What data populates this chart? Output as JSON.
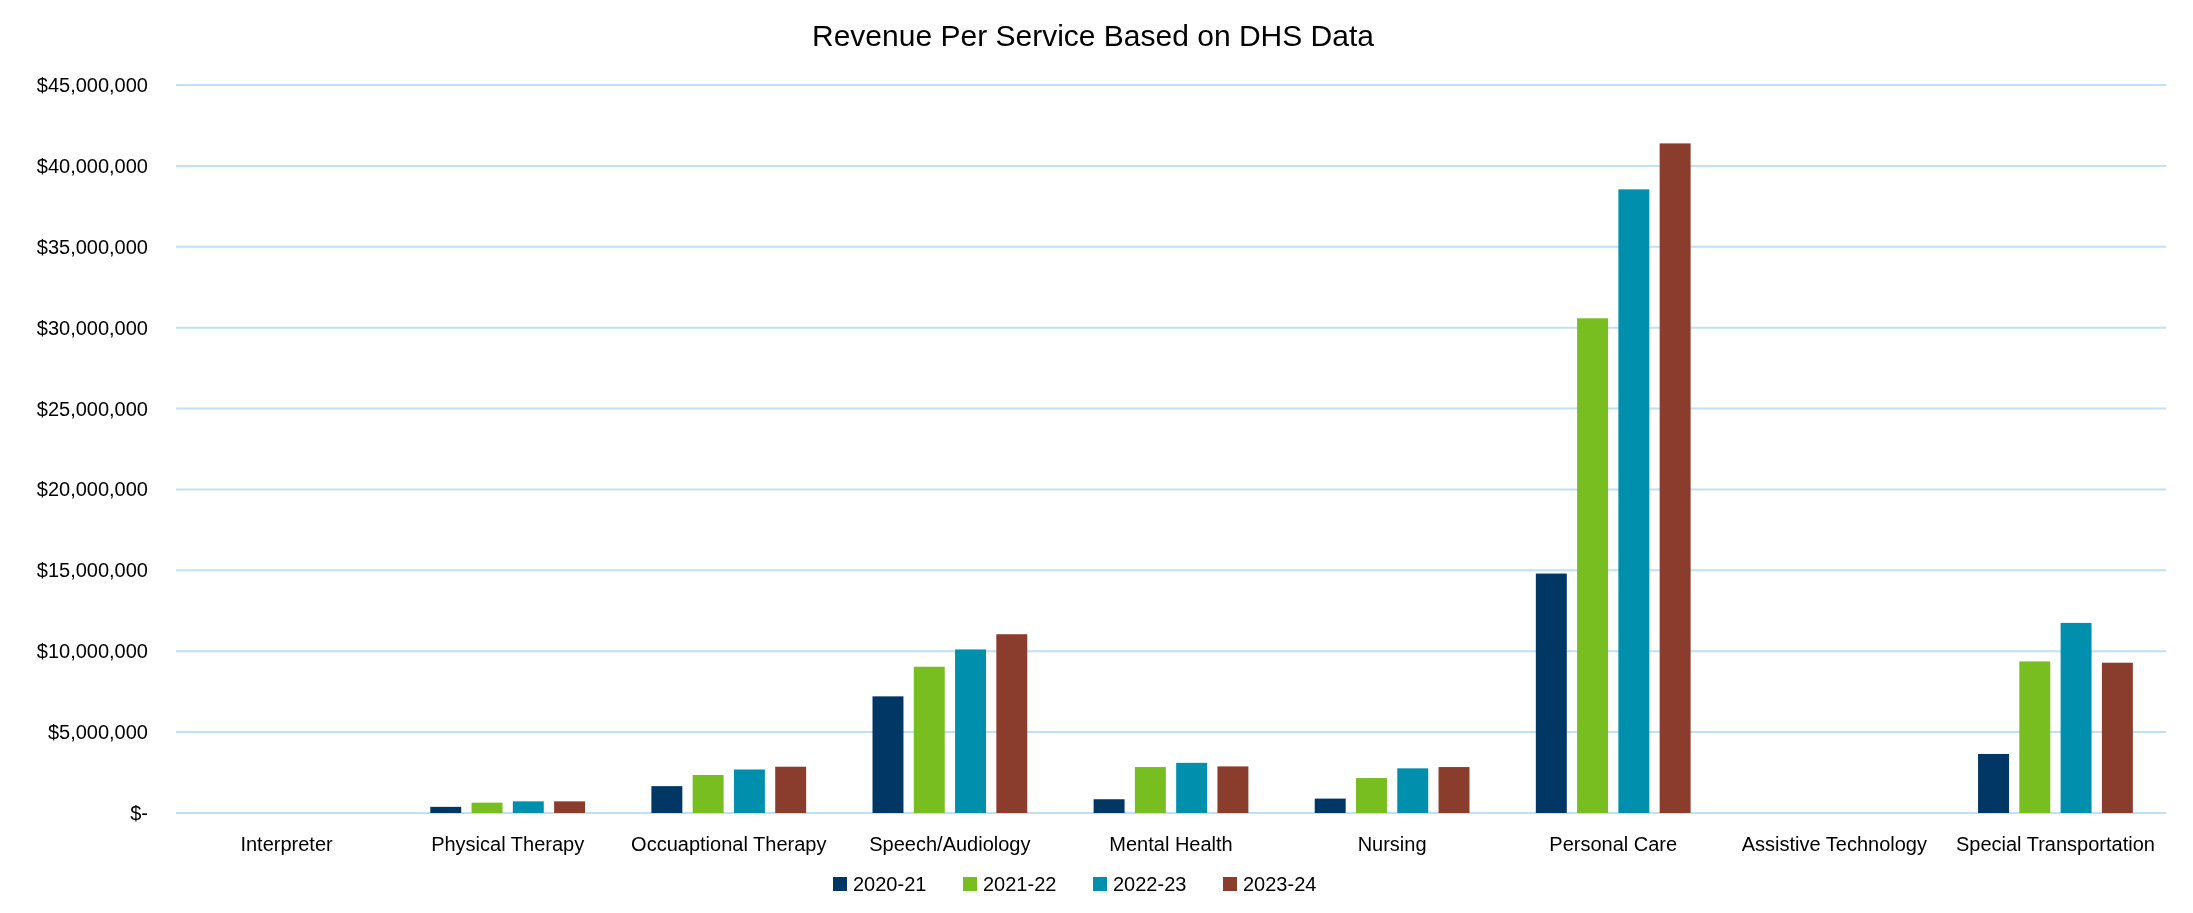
{
  "chart_data": {
    "type": "bar",
    "title": "Revenue Per Service Based on DHS Data",
    "categories": [
      "Interpreter",
      "Physical Therapy",
      "Occuaptional Therapy",
      "Speech/Audiology",
      "Mental Health",
      "Nursing",
      "Personal Care",
      "Assistive Technology",
      "Special Transportation"
    ],
    "series": [
      {
        "name": "2020-21",
        "color": "#003764",
        "values": [
          0,
          380000,
          1660000,
          7210000,
          850000,
          890000,
          14800000,
          0,
          3650000
        ]
      },
      {
        "name": "2021-22",
        "color": "#78be20",
        "values": [
          0,
          640000,
          2350000,
          9040000,
          2840000,
          2160000,
          30580000,
          0,
          9370000
        ]
      },
      {
        "name": "2022-23",
        "color": "#0090ad",
        "values": [
          0,
          720000,
          2690000,
          10110000,
          3100000,
          2760000,
          38550000,
          0,
          11750000
        ]
      },
      {
        "name": "2023-24",
        "color": "#8b3d2d",
        "values": [
          0,
          720000,
          2860000,
          11050000,
          2880000,
          2840000,
          41390000,
          0,
          9290000
        ]
      }
    ],
    "ylim": [
      0,
      45000000
    ],
    "yticks": [
      {
        "value": 0,
        "label": "$-"
      },
      {
        "value": 5000000,
        "label": "$5,000,000"
      },
      {
        "value": 10000000,
        "label": "$10,000,000"
      },
      {
        "value": 15000000,
        "label": "$15,000,000"
      },
      {
        "value": 20000000,
        "label": "$20,000,000"
      },
      {
        "value": 25000000,
        "label": "$25,000,000"
      },
      {
        "value": 30000000,
        "label": "$30,000,000"
      },
      {
        "value": 35000000,
        "label": "$35,000,000"
      },
      {
        "value": 40000000,
        "label": "$40,000,000"
      },
      {
        "value": 45000000,
        "label": "$45,000,000"
      }
    ],
    "grid": "y",
    "legend": "bottom"
  }
}
